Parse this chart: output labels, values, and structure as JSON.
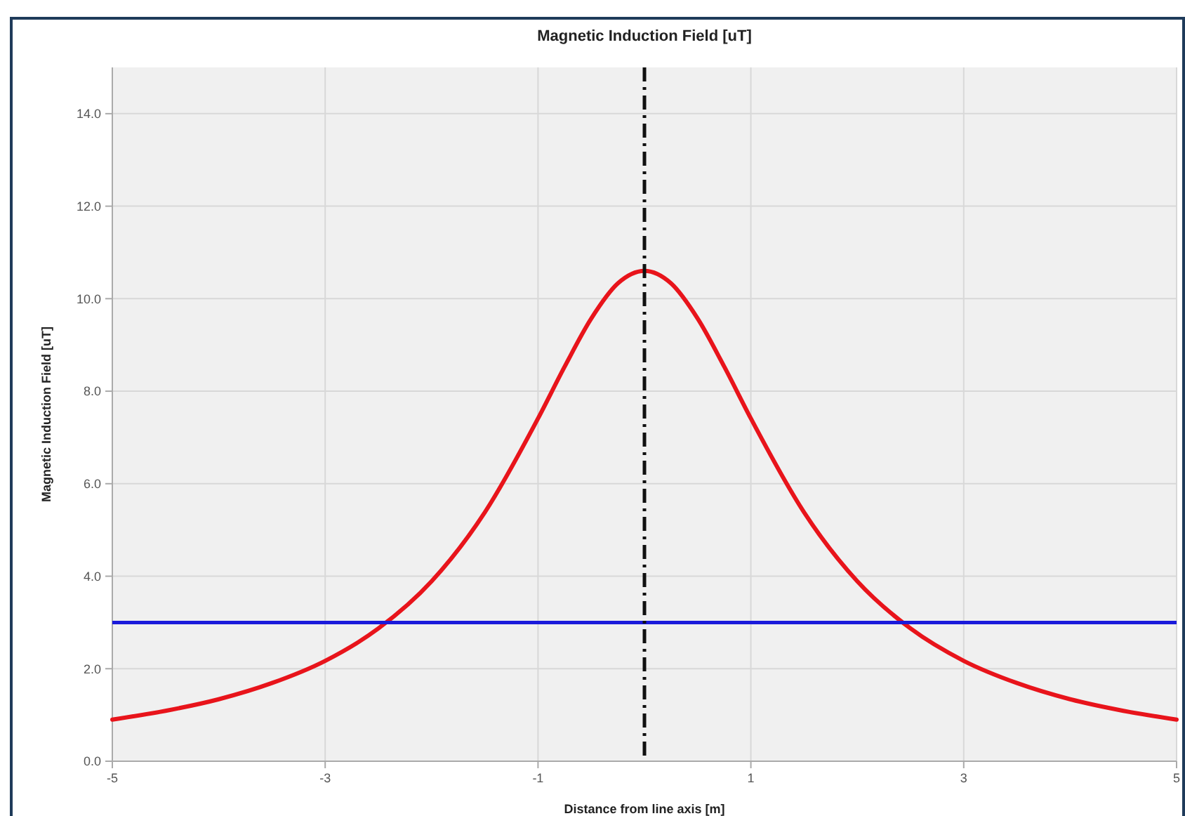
{
  "chart_data": {
    "type": "line",
    "title": "Magnetic Induction Field [uT]",
    "xlabel": "Distance from line axis [m]",
    "ylabel": "Magnetic Induction Field [uT]",
    "x": [
      -5,
      -4.5,
      -4,
      -3.5,
      -3,
      -2.5,
      -2,
      -1.5,
      -1,
      -0.75,
      -0.5,
      -0.25,
      0,
      0.25,
      0.5,
      0.75,
      1,
      1.5,
      2,
      2.5,
      3,
      3.5,
      4,
      4.5,
      5
    ],
    "series": [
      {
        "color": "#e8141b",
        "values": [
          0.9,
          1.09,
          1.34,
          1.69,
          2.17,
          2.87,
          3.89,
          5.38,
          7.41,
          8.53,
          9.57,
          10.33,
          10.6,
          10.33,
          9.57,
          8.53,
          7.41,
          5.38,
          3.89,
          2.87,
          2.17,
          1.69,
          1.34,
          1.09,
          0.9
        ]
      }
    ],
    "xlim": [
      -5,
      5
    ],
    "xticks": [
      -5,
      -3,
      -1,
      1,
      3,
      5
    ],
    "ylim": [
      0,
      15
    ],
    "yticks": [
      {
        "value": 0,
        "label": "0.0"
      },
      {
        "value": 2,
        "label": "2.0"
      },
      {
        "value": 4,
        "label": "4.0"
      },
      {
        "value": 6,
        "label": "6.0"
      },
      {
        "value": 8,
        "label": "8.0"
      },
      {
        "value": 10,
        "label": "10.0"
      },
      {
        "value": 12,
        "label": "12.0"
      },
      {
        "value": 14,
        "label": "14.0"
      }
    ],
    "ref_lines": [
      {
        "axis": "y",
        "value": 3,
        "color": "#1a1adb",
        "line_style": "solid"
      },
      {
        "axis": "x",
        "value": 0,
        "color": "#111111",
        "line_style": "dashdot"
      }
    ],
    "grid": true,
    "marker": "none",
    "line_style": "solid"
  }
}
